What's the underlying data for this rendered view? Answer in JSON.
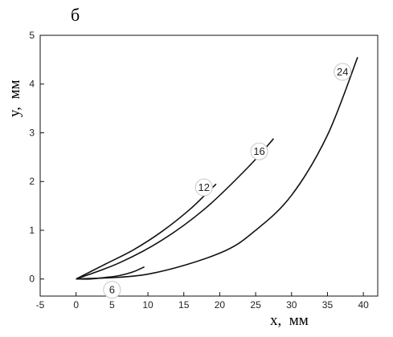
{
  "panel_label": "б",
  "chart_data": {
    "type": "line",
    "xlabel": "x,  мм",
    "ylabel": "y,  мм",
    "xlim": [
      -5,
      42
    ],
    "ylim": [
      -0.35,
      5
    ],
    "xticks": [
      -5,
      0,
      5,
      10,
      15,
      20,
      25,
      30,
      35,
      40
    ],
    "yticks": [
      0,
      1,
      2,
      3,
      4,
      5
    ],
    "grid": false,
    "line_color": "#111111",
    "series": [
      {
        "name": "6",
        "label_at": [
          5,
          -0.22
        ],
        "x": [
          0,
          2,
          4,
          6,
          8,
          9.5
        ],
        "y": [
          0,
          0.0,
          0.03,
          0.07,
          0.15,
          0.25
        ]
      },
      {
        "name": "12",
        "label_at": [
          17.8,
          1.88
        ],
        "x": [
          0,
          4,
          8,
          12,
          16,
          19.5
        ],
        "y": [
          0,
          0.3,
          0.6,
          0.98,
          1.45,
          1.95
        ]
      },
      {
        "name": "16",
        "label_at": [
          25.5,
          2.62
        ],
        "x": [
          0,
          6,
          12,
          18,
          24,
          27.5
        ],
        "y": [
          0,
          0.33,
          0.8,
          1.45,
          2.3,
          2.88
        ]
      },
      {
        "name": "24",
        "label_at": [
          37.1,
          4.25
        ],
        "x": [
          0,
          10,
          20,
          25,
          30,
          35,
          39.2
        ],
        "y": [
          0,
          0.1,
          0.53,
          1.0,
          1.72,
          2.95,
          4.55
        ]
      }
    ]
  }
}
